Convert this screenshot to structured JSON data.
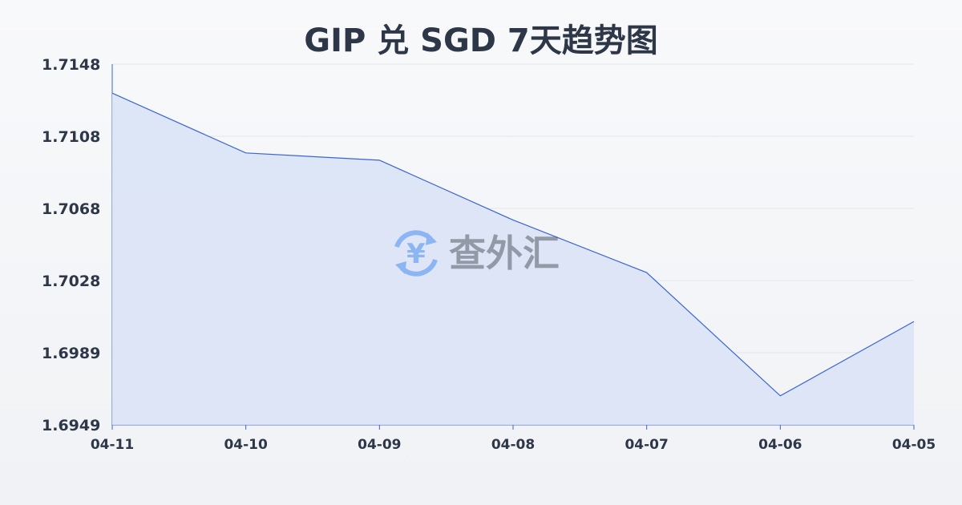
{
  "chart_data": {
    "type": "area",
    "title": "GIP 兑 SGD 7天趋势图",
    "xlabel": "",
    "ylabel": "",
    "categories": [
      "04-11",
      "04-10",
      "04-09",
      "04-08",
      "04-07",
      "04-06",
      "04-05"
    ],
    "values": [
      1.7132,
      1.7099,
      1.7095,
      1.7062,
      1.7033,
      1.6965,
      1.7006
    ],
    "yticks": [
      "1.7148",
      "1.7108",
      "1.7068",
      "1.7028",
      "1.6989",
      "1.6949"
    ],
    "ylim": [
      1.6949,
      1.7148
    ],
    "grid": true,
    "colors": {
      "line": "#3b64d4",
      "fill": "#dae3f6",
      "grid": "#e3e6ec"
    }
  },
  "watermark": {
    "text": "查外汇",
    "icon": "yen-exchange-icon"
  }
}
